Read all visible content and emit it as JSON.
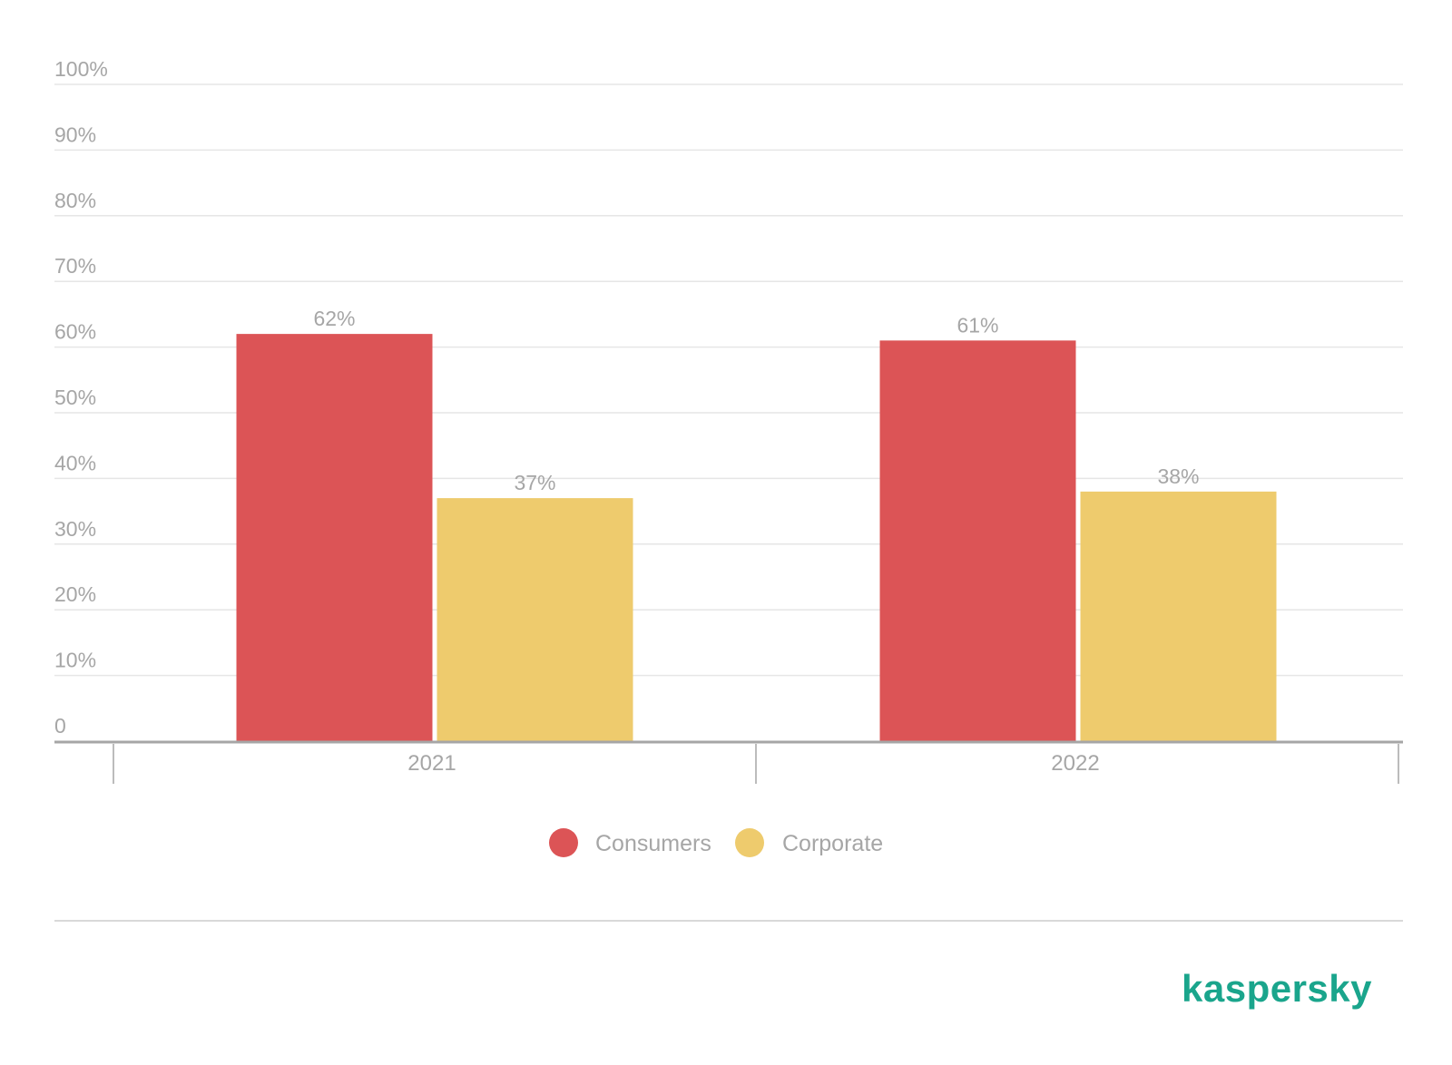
{
  "chart_data": {
    "type": "bar",
    "categories": [
      "2021",
      "2022"
    ],
    "series": [
      {
        "name": "Consumers",
        "values": [
          62,
          61
        ],
        "color": "#dc5456"
      },
      {
        "name": "Corporate",
        "values": [
          37,
          38
        ],
        "color": "#eecb6d"
      }
    ],
    "data_labels": [
      [
        "62%",
        "61%"
      ],
      [
        "37%",
        "38%"
      ]
    ],
    "y_ticks": [
      {
        "value": 0,
        "label": "0"
      },
      {
        "value": 10,
        "label": "10%"
      },
      {
        "value": 20,
        "label": "20%"
      },
      {
        "value": 30,
        "label": "30%"
      },
      {
        "value": 40,
        "label": "40%"
      },
      {
        "value": 50,
        "label": "50%"
      },
      {
        "value": 60,
        "label": "60%"
      },
      {
        "value": 70,
        "label": "70%"
      },
      {
        "value": 80,
        "label": "80%"
      },
      {
        "value": 90,
        "label": "90%"
      },
      {
        "value": 100,
        "label": "100%"
      }
    ],
    "ylim": [
      0,
      100
    ],
    "grid": true,
    "legend_position": "bottom-center",
    "title": "",
    "xlabel": "",
    "ylabel": ""
  },
  "branding": {
    "logo_text": "kaspersky",
    "color": "#1aa58c"
  },
  "colors": {
    "text": "#a6a6a6",
    "grid": "#e6e6e6",
    "axis": "#a6a6a6"
  }
}
